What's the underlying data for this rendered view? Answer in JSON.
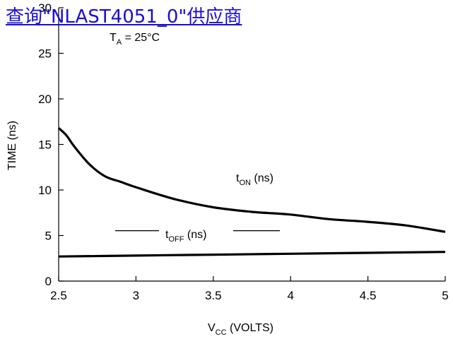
{
  "overlay_link": "查询\"NLAST4051_0\"供应商",
  "chart_data": {
    "type": "line",
    "ylabel": "TIME (ns)",
    "xlabel_main": "V",
    "xlabel_sub": "CC",
    "xlabel_tail": " (VOLTS)",
    "condition": {
      "main": "T",
      "sub": "A",
      "tail": " = 25°C"
    },
    "xlim": [
      2.5,
      5
    ],
    "ylim": [
      0,
      30
    ],
    "xticks": [
      "2.5",
      "3",
      "3.5",
      "4",
      "4.5",
      "5"
    ],
    "yticks": [
      "0",
      "5",
      "10",
      "15",
      "20",
      "25",
      "30"
    ],
    "grid": false,
    "series": [
      {
        "name": "tON (ns)",
        "label_main": "t",
        "label_sub": "ON",
        "label_tail": " (ns)",
        "x": [
          2.5,
          2.55,
          2.6,
          2.7,
          2.8,
          2.9,
          3.0,
          3.25,
          3.5,
          3.75,
          4.0,
          4.25,
          4.5,
          4.75,
          5.0
        ],
        "y": [
          16.8,
          16.0,
          14.8,
          12.8,
          11.5,
          10.9,
          10.3,
          9.0,
          8.1,
          7.6,
          7.3,
          6.8,
          6.5,
          6.1,
          5.4
        ]
      },
      {
        "name": "tOFF (ns)",
        "label_main": "t",
        "label_sub": "OFF",
        "label_tail": " (ns)",
        "x": [
          2.5,
          3.0,
          3.5,
          4.0,
          4.5,
          5.0
        ],
        "y": [
          2.7,
          2.8,
          2.9,
          3.0,
          3.1,
          3.2
        ]
      }
    ]
  }
}
